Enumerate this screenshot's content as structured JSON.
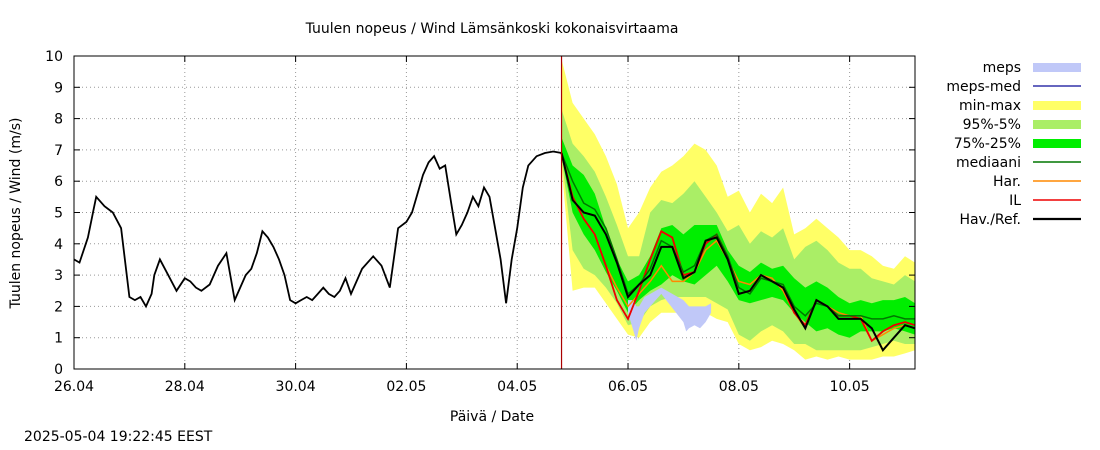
{
  "timestamp": "2025-05-04 19:22:45 EEST",
  "chart_data": {
    "type": "area",
    "title": "Tuulen nopeus / Wind  Lämsänkoski kokonaisvirtaama",
    "xlabel": "Päivä / Date",
    "ylabel": "Tuulen nopeus / Wind (m/s)",
    "xlim": [
      0,
      15.18
    ],
    "ylim": [
      0,
      10
    ],
    "yticks": [
      0,
      1,
      2,
      3,
      4,
      5,
      6,
      7,
      8,
      9,
      10
    ],
    "xticks": [
      {
        "pos": 0,
        "label": "26.04"
      },
      {
        "pos": 2,
        "label": "28.04"
      },
      {
        "pos": 4,
        "label": "30.04"
      },
      {
        "pos": 6,
        "label": "02.05"
      },
      {
        "pos": 8,
        "label": "04.05"
      },
      {
        "pos": 10,
        "label": "06.05"
      },
      {
        "pos": 12,
        "label": "08.05"
      },
      {
        "pos": 14,
        "label": "10.05"
      }
    ],
    "grid": true,
    "legend_position": "outside-right",
    "forecast_start": 8.8,
    "colors": {
      "meps": "#c0c8f8",
      "meps_med": "#3333aa",
      "minmax": "#ffff66",
      "p95_5": "#aaee66",
      "p75_25": "#00ee00",
      "median": "#007700",
      "har": "#ff8800",
      "il": "#ee0000",
      "obs": "#000000",
      "vline": "#aa0000",
      "grid": "#999999"
    },
    "legend": [
      {
        "key": "meps",
        "label": "meps",
        "style": "fill"
      },
      {
        "key": "meps_med",
        "label": "meps-med",
        "style": "line"
      },
      {
        "key": "minmax",
        "label": "min-max",
        "style": "fill"
      },
      {
        "key": "p95_5",
        "label": "95%-5%",
        "style": "fill"
      },
      {
        "key": "p75_25",
        "label": "75%-25%",
        "style": "fill"
      },
      {
        "key": "median",
        "label": "mediaani",
        "style": "line"
      },
      {
        "key": "har",
        "label": "Har.",
        "style": "line"
      },
      {
        "key": "il",
        "label": "IL",
        "style": "line"
      },
      {
        "key": "obs",
        "label": "Hav./Ref.",
        "style": "thickline"
      }
    ],
    "observed": {
      "x": [
        0,
        0.1,
        0.25,
        0.4,
        0.55,
        0.7,
        0.85,
        1.0,
        1.1,
        1.2,
        1.3,
        1.4,
        1.45,
        1.55,
        1.7,
        1.85,
        2.0,
        2.1,
        2.2,
        2.3,
        2.45,
        2.6,
        2.75,
        2.9,
        3.0,
        3.1,
        3.2,
        3.3,
        3.4,
        3.5,
        3.6,
        3.7,
        3.8,
        3.9,
        4.0,
        4.1,
        4.2,
        4.3,
        4.4,
        4.5,
        4.6,
        4.7,
        4.8,
        4.9,
        5.0,
        5.2,
        5.4,
        5.55,
        5.7,
        5.85,
        6.0,
        6.1,
        6.2,
        6.3,
        6.4,
        6.5,
        6.6,
        6.7,
        6.8,
        6.9,
        7.0,
        7.1,
        7.2,
        7.3,
        7.4,
        7.5,
        7.6,
        7.7,
        7.8,
        7.9,
        8.0,
        8.1,
        8.2,
        8.35,
        8.5,
        8.65,
        8.8
      ],
      "y": [
        3.5,
        3.4,
        4.2,
        5.5,
        5.2,
        5.0,
        4.5,
        2.3,
        2.2,
        2.3,
        2.0,
        2.4,
        3.0,
        3.5,
        3.0,
        2.5,
        2.9,
        2.8,
        2.6,
        2.5,
        2.7,
        3.3,
        3.7,
        2.2,
        2.6,
        3.0,
        3.2,
        3.7,
        4.4,
        4.2,
        3.9,
        3.5,
        3.0,
        2.2,
        2.1,
        2.2,
        2.3,
        2.2,
        2.4,
        2.6,
        2.4,
        2.3,
        2.5,
        2.9,
        2.4,
        3.2,
        3.6,
        3.3,
        2.6,
        4.5,
        4.7,
        5.0,
        5.6,
        6.2,
        6.6,
        6.8,
        6.4,
        6.5,
        5.4,
        4.3,
        4.6,
        5.0,
        5.5,
        5.2,
        5.8,
        5.5,
        4.5,
        3.5,
        2.1,
        3.5,
        4.5,
        5.8,
        6.5,
        6.8,
        6.9,
        6.95,
        6.9
      ]
    },
    "forecast_x": [
      8.8,
      9.0,
      9.2,
      9.4,
      9.6,
      9.8,
      10.0,
      10.2,
      10.4,
      10.6,
      10.8,
      11.0,
      11.2,
      11.4,
      11.6,
      11.8,
      12.0,
      12.2,
      12.4,
      12.6,
      12.8,
      13.0,
      13.2,
      13.4,
      13.6,
      13.8,
      14.0,
      14.2,
      14.4,
      14.6,
      14.8,
      15.0,
      15.18
    ],
    "minmax": {
      "low": [
        6.5,
        2.5,
        2.6,
        2.6,
        2.1,
        1.6,
        1.1,
        1.0,
        1.5,
        1.8,
        1.8,
        1.8,
        1.8,
        1.8,
        1.6,
        1.5,
        0.8,
        0.6,
        0.7,
        0.9,
        0.8,
        0.6,
        0.3,
        0.4,
        0.3,
        0.4,
        0.3,
        0.3,
        0.3,
        0.4,
        0.4,
        0.5,
        0.6
      ],
      "high": [
        9.9,
        8.5,
        8.0,
        7.5,
        6.8,
        5.9,
        4.5,
        5.0,
        5.8,
        6.3,
        6.5,
        6.8,
        7.2,
        7.0,
        6.5,
        5.5,
        5.7,
        5.0,
        5.6,
        5.3,
        5.8,
        4.3,
        4.5,
        4.8,
        4.5,
        4.2,
        3.8,
        3.8,
        3.6,
        3.3,
        3.2,
        3.6,
        3.4
      ]
    },
    "p95_5": {
      "low": [
        6.8,
        3.8,
        3.2,
        3.0,
        2.6,
        2.1,
        1.4,
        1.5,
        2.0,
        2.2,
        2.3,
        2.3,
        2.3,
        2.3,
        2.1,
        1.9,
        1.1,
        0.9,
        1.2,
        1.4,
        1.2,
        0.8,
        0.8,
        0.6,
        0.6,
        0.6,
        0.6,
        0.6,
        0.7,
        0.8,
        0.9,
        0.8,
        0.8
      ],
      "high": [
        8.3,
        7.2,
        6.8,
        6.3,
        5.5,
        4.6,
        3.6,
        3.6,
        5.0,
        5.4,
        5.3,
        5.6,
        6.0,
        5.5,
        5.0,
        4.4,
        4.6,
        4.0,
        4.4,
        4.2,
        4.5,
        3.5,
        3.9,
        4.1,
        3.8,
        3.4,
        3.2,
        3.2,
        2.9,
        2.8,
        2.7,
        3.0,
        2.8
      ]
    },
    "p75_25": {
      "low": [
        6.8,
        5.0,
        4.3,
        3.8,
        3.1,
        2.5,
        1.8,
        2.2,
        2.5,
        2.7,
        3.0,
        2.8,
        2.7,
        3.0,
        3.3,
        2.8,
        2.2,
        2.1,
        2.2,
        2.3,
        2.2,
        1.8,
        1.5,
        1.2,
        1.3,
        1.1,
        1.0,
        1.2,
        1.2,
        1.2,
        1.3,
        1.2,
        1.1
      ],
      "high": [
        7.4,
        6.5,
        6.2,
        5.6,
        4.5,
        3.5,
        2.8,
        3.0,
        3.6,
        4.5,
        4.6,
        4.3,
        4.6,
        4.6,
        4.6,
        3.8,
        3.3,
        3.1,
        3.4,
        3.2,
        3.3,
        2.9,
        2.6,
        2.8,
        2.6,
        2.3,
        2.1,
        2.2,
        2.1,
        2.2,
        2.2,
        2.3,
        2.1
      ]
    },
    "meps": {
      "x": [
        10.0,
        10.1,
        10.15,
        10.2,
        10.3,
        10.4,
        10.5,
        10.6,
        11.0,
        11.05,
        11.1,
        11.2,
        11.3,
        11.4,
        11.5
      ],
      "low": [
        1.8,
        1.2,
        0.9,
        1.3,
        1.8,
        2.0,
        2.2,
        2.4,
        1.5,
        1.2,
        1.3,
        1.4,
        1.3,
        1.5,
        1.8
      ],
      "high": [
        2.2,
        2.2,
        2.0,
        2.0,
        2.3,
        2.4,
        2.5,
        2.6,
        2.2,
        2.1,
        2.0,
        2.0,
        2.0,
        2.0,
        2.1
      ]
    },
    "median": [
      6.9,
      6.0,
      5.3,
      5.1,
      4.5,
      3.5,
      2.4,
      2.7,
      3.2,
      4.1,
      3.9,
      3.1,
      3.3,
      4.1,
      4.3,
      3.6,
      2.6,
      2.4,
      2.9,
      2.8,
      2.7,
      2.0,
      1.7,
      2.1,
      2.0,
      1.7,
      1.7,
      1.7,
      1.6,
      1.6,
      1.7,
      1.6,
      1.6
    ],
    "har": [
      6.9,
      5.5,
      4.8,
      4.3,
      3.3,
      2.6,
      2.0,
      2.4,
      2.8,
      3.3,
      2.8,
      2.8,
      3.1,
      3.8,
      4.1,
      3.5,
      2.8,
      2.7,
      3.0,
      2.9,
      2.5,
      1.8,
      1.3,
      2.2,
      2.0,
      1.8,
      1.7,
      1.7,
      0.9,
      1.1,
      1.3,
      1.4,
      1.3
    ],
    "il": [
      6.9,
      5.5,
      4.8,
      4.3,
      3.3,
      2.2,
      1.6,
      2.5,
      3.5,
      4.4,
      4.2,
      3.0,
      3.1,
      4.0,
      4.3,
      3.6,
      2.4,
      2.5,
      3.0,
      2.8,
      2.6,
      1.8,
      1.4,
      2.2,
      2.0,
      1.7,
      1.7,
      1.6,
      0.9,
      1.2,
      1.4,
      1.5,
      1.4
    ],
    "obs_fc": [
      6.9,
      5.4,
      5.0,
      4.9,
      4.3,
      3.4,
      2.3,
      2.7,
      3.0,
      3.9,
      3.9,
      2.9,
      3.1,
      4.1,
      4.2,
      3.5,
      2.4,
      2.5,
      3.0,
      2.8,
      2.6,
      1.9,
      1.3,
      2.2,
      2.0,
      1.6,
      1.6,
      1.6,
      1.3,
      0.6,
      1.0,
      1.4,
      1.3
    ]
  }
}
